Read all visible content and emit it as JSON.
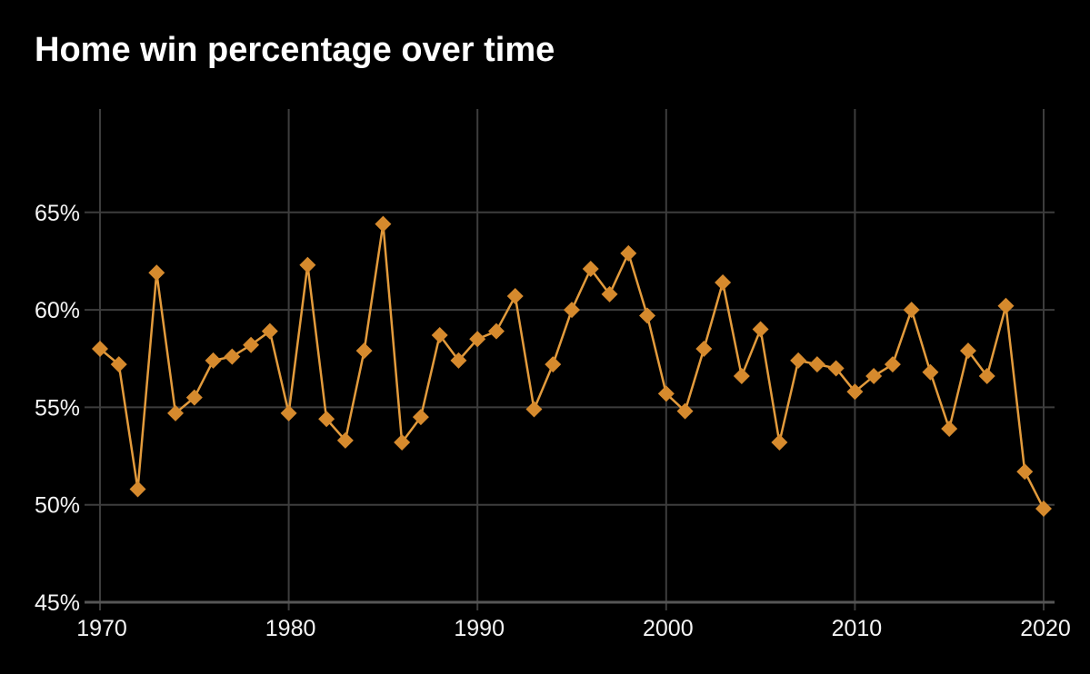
{
  "chart_data": {
    "type": "line",
    "title": "Home win percentage over time",
    "xlabel": "",
    "ylabel": "",
    "x": [
      1970,
      1971,
      1972,
      1973,
      1974,
      1975,
      1976,
      1977,
      1978,
      1979,
      1980,
      1981,
      1982,
      1983,
      1984,
      1985,
      1986,
      1987,
      1988,
      1989,
      1990,
      1991,
      1992,
      1993,
      1994,
      1995,
      1996,
      1997,
      1998,
      1999,
      2000,
      2001,
      2002,
      2003,
      2004,
      2005,
      2006,
      2007,
      2008,
      2009,
      2010,
      2011,
      2012,
      2013,
      2014,
      2015,
      2016,
      2017,
      2018,
      2019,
      2020
    ],
    "series": [
      {
        "name": "Home win percentage",
        "values": [
          58.0,
          57.2,
          50.8,
          61.9,
          54.7,
          55.5,
          57.4,
          57.6,
          58.2,
          58.9,
          54.7,
          62.3,
          54.4,
          53.3,
          57.9,
          64.4,
          53.2,
          54.5,
          58.7,
          57.4,
          58.5,
          58.9,
          60.7,
          54.9,
          57.2,
          60.0,
          62.1,
          60.8,
          62.9,
          59.7,
          55.7,
          54.8,
          58.0,
          61.4,
          56.6,
          59.0,
          53.2,
          57.4,
          57.2,
          57.0,
          55.8,
          56.6,
          57.2,
          60.0,
          56.8,
          53.9,
          57.9,
          56.6,
          60.2,
          51.7,
          49.8
        ]
      }
    ],
    "xlim": [
      1970,
      2020
    ],
    "ylim": [
      45,
      70.3
    ],
    "xticks": [
      1970,
      1980,
      1990,
      2000,
      2010,
      2020
    ],
    "xticklabels": [
      "1970",
      "1980",
      "1990",
      "2000",
      "2010",
      "2020"
    ],
    "yticks": [
      45,
      50,
      55,
      60,
      65
    ],
    "yticklabels": [
      "45%",
      "50%",
      "55%",
      "60%",
      "65%"
    ],
    "grid": true,
    "legend": "none",
    "marker_shape": "diamond",
    "colors": {
      "background": "#000000",
      "line": "#E39B3C",
      "marker": "#D68A2D",
      "grid": "#3d3d3d",
      "axis": "#565656",
      "text": "#f5f5f5"
    }
  }
}
